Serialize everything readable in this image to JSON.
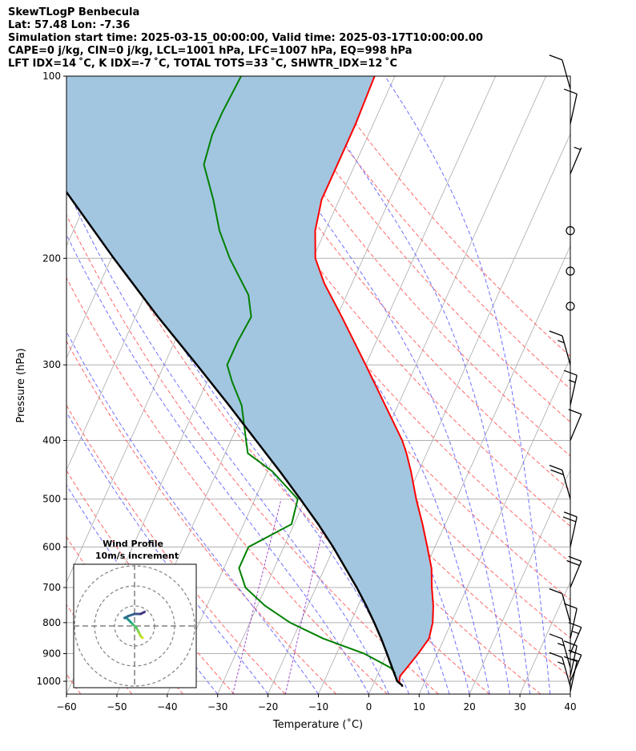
{
  "header": {
    "line1": "SkewTLogP Benbecula",
    "line2": "Lat: 57.48   Lon: -7.36",
    "line3": "Simulation start time: 2025-03-15_00:00:00, Valid time: 2025-03-17T10:00:00.00",
    "line4": "CAPE=0 j/kg, CIN=0 j/kg, LCL=1001 hPa, LFC=1007 hPa, EQ=998 hPa",
    "line5": "LFT IDX=14 ˚C, K IDX=-7 ˚C, TOTAL TOTS=33 ˚C, SHWTR_IDX=12 ˚C"
  },
  "chart_data": {
    "type": "skew-t log-p",
    "xlabel": "Temperature (˚C)",
    "ylabel": "Pressure (hPa)",
    "xlim": [
      -60,
      40
    ],
    "ylim": [
      1050,
      100
    ],
    "x_ticks": [
      -60,
      -50,
      -40,
      -30,
      -20,
      -10,
      0,
      10,
      20,
      30,
      40
    ],
    "y_ticks": [
      100,
      200,
      300,
      400,
      500,
      600,
      700,
      800,
      900,
      1000
    ],
    "grid": true,
    "log_pressure_axis": true,
    "skewed_isotherms": true,
    "colors": {
      "temperature": "#ff0000",
      "dewpoint": "#008000",
      "parcel": "#000000",
      "cape_shading": "#a2c6e0",
      "dry_adiabats": "#ff6666",
      "moist_adiabats": "#6f6fff",
      "mixing_ratio": "#9a4fc9",
      "isotherms": "#aaaaaa"
    },
    "temperature_profile": {
      "pressure": [
        1008,
        1000,
        980,
        950,
        900,
        850,
        800,
        750,
        700,
        650,
        600,
        550,
        500,
        450,
        420,
        400,
        350,
        300,
        250,
        220,
        200,
        180,
        160,
        140,
        120,
        100
      ],
      "temperature": [
        5.2,
        4.9,
        4.6,
        5.2,
        6.2,
        7.0,
        6.3,
        4.9,
        3.0,
        1.2,
        -1.5,
        -4.5,
        -8.0,
        -11.5,
        -14.0,
        -16.0,
        -22.5,
        -30.0,
        -39.0,
        -45.5,
        -49.5,
        -52.0,
        -53.5,
        -53.5,
        -53.5,
        -54.0
      ]
    },
    "dewpoint_profile": {
      "pressure": [
        970,
        950,
        900,
        850,
        800,
        750,
        700,
        650,
        600,
        550,
        500,
        450,
        420,
        400,
        350,
        320,
        300,
        275,
        250,
        230,
        200,
        180,
        160,
        140,
        125,
        115,
        100
      ],
      "dewpoint": [
        3.4,
        2.0,
        -4.5,
        -14.0,
        -22.0,
        -28.5,
        -34.0,
        -37.0,
        -37.0,
        -30.5,
        -31.5,
        -39.0,
        -45.5,
        -47.0,
        -51.0,
        -55.0,
        -57.5,
        -57.5,
        -57.0,
        -59.5,
        -66.5,
        -71.0,
        -75.0,
        -80.0,
        -81.0,
        -81.0,
        -80.5
      ]
    },
    "parcel_profile": {
      "pressure": [
        1021,
        1015,
        1008,
        1000,
        950,
        900,
        850,
        800,
        750,
        700,
        650,
        600,
        550,
        500,
        450,
        400,
        350,
        300,
        250,
        200,
        150,
        100
      ],
      "temperature": [
        6.0,
        5.8,
        5.2,
        4.5,
        2.3,
        0.0,
        -2.5,
        -5.3,
        -8.4,
        -11.9,
        -15.9,
        -20.2,
        -25.2,
        -31.0,
        -37.5,
        -45.0,
        -53.5,
        -63.5,
        -75.5,
        -89.5,
        -107.0,
        -128.0
      ]
    },
    "wind_barbs": {
      "pressure": [
        1040,
        1020,
        1000,
        980,
        950,
        900,
        850,
        800,
        700,
        600,
        500,
        400,
        350,
        300,
        240,
        210,
        180,
        145,
        120,
        105
      ],
      "speed_kt": [
        10,
        15,
        15,
        15,
        15,
        15,
        10,
        10,
        20,
        20,
        20,
        10,
        15,
        15,
        0,
        0,
        0,
        5,
        10,
        10
      ]
    },
    "hodograph": {
      "title": "Wind Profile",
      "subtitle": "10m/s increment",
      "rings_ms": [
        10,
        20,
        30
      ],
      "u": [
        4,
        3,
        2,
        1,
        -1,
        -2,
        -3,
        -4,
        -5,
        -3,
        0,
        3,
        5
      ],
      "v": [
        -6,
        -5,
        -3,
        -1,
        1,
        2,
        3,
        4,
        4,
        5,
        6,
        6,
        7
      ]
    }
  }
}
